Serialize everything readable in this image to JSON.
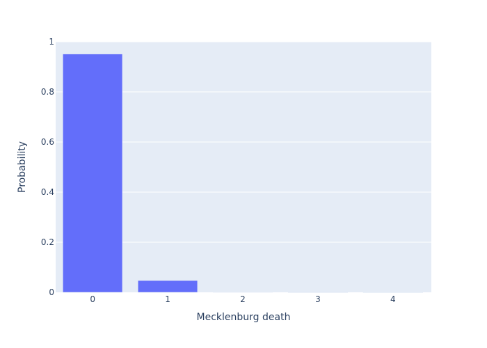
{
  "chart_data": {
    "type": "bar",
    "categories": [
      "0",
      "1",
      "2",
      "3",
      "4"
    ],
    "values": [
      0.951,
      0.047,
      0.0013,
      0.0002,
      3e-05
    ],
    "xlabel": "Mecklenburg death",
    "ylabel": "Probability",
    "ylim": [
      0,
      1
    ],
    "yticks": [
      0,
      0.2,
      0.4,
      0.6,
      0.8,
      1
    ],
    "ytick_labels": [
      "0",
      "0.2",
      "0.4",
      "0.6",
      "0.8",
      "1"
    ],
    "grid": true,
    "legend": "none"
  },
  "colors": {
    "bar": "#636efa",
    "plot_background": "#e5ecf6",
    "gridline": "#ffffff",
    "text": "#2a3f5f"
  }
}
